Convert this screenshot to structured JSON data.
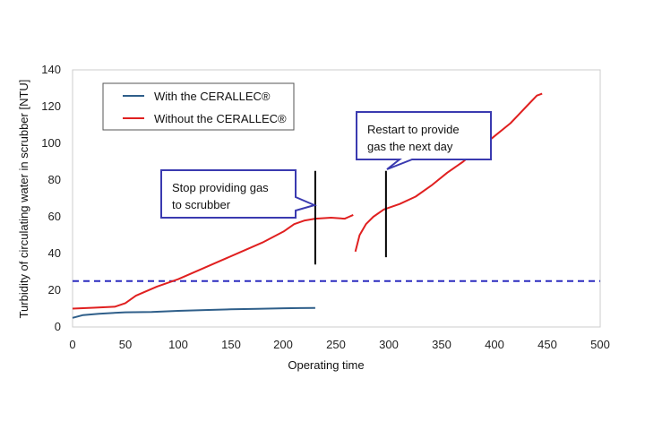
{
  "chart_data": {
    "type": "line",
    "xlabel": "Operating time",
    "ylabel": "Turbidity of circulating water in scrubber [NTU]",
    "xlim": [
      0,
      500
    ],
    "ylim": [
      0,
      140
    ],
    "xticks": [
      0,
      50,
      100,
      150,
      200,
      250,
      300,
      350,
      400,
      450,
      500
    ],
    "yticks": [
      0,
      20,
      40,
      60,
      80,
      100,
      120,
      140
    ],
    "grid": false,
    "legend_position": "top-left",
    "threshold": {
      "y": 25,
      "style": "dashed",
      "color": "#2b2bbf"
    },
    "series": [
      {
        "name": "With the CERALLEC®",
        "color": "#2f5f8a",
        "segments": [
          [
            [
              0,
              5
            ],
            [
              10,
              6.5
            ],
            [
              25,
              7.2
            ],
            [
              50,
              8
            ],
            [
              75,
              8.2
            ],
            [
              100,
              8.8
            ],
            [
              125,
              9.2
            ],
            [
              150,
              9.6
            ],
            [
              175,
              9.9
            ],
            [
              200,
              10.2
            ],
            [
              215,
              10.3
            ],
            [
              230,
              10.4
            ]
          ]
        ]
      },
      {
        "name": "Without the CERALLEC®",
        "color": "#e02020",
        "segments": [
          [
            [
              0,
              10
            ],
            [
              20,
              10.5
            ],
            [
              40,
              11
            ],
            [
              50,
              13
            ],
            [
              60,
              17
            ],
            [
              80,
              22
            ],
            [
              100,
              26
            ],
            [
              120,
              31
            ],
            [
              140,
              36
            ],
            [
              160,
              41
            ],
            [
              180,
              46
            ],
            [
              200,
              52
            ],
            [
              210,
              56
            ],
            [
              220,
              58
            ],
            [
              230,
              59
            ],
            [
              245,
              59.5
            ],
            [
              258,
              59
            ],
            [
              262,
              60
            ],
            [
              266,
              61
            ]
          ],
          [
            [
              268,
              41
            ],
            [
              272,
              50
            ],
            [
              278,
              56
            ],
            [
              285,
              60
            ],
            [
              295,
              64
            ],
            [
              310,
              67
            ],
            [
              325,
              71
            ],
            [
              340,
              77
            ],
            [
              355,
              84
            ],
            [
              370,
              90
            ],
            [
              385,
              97
            ],
            [
              400,
              104
            ],
            [
              415,
              111
            ],
            [
              430,
              120
            ],
            [
              440,
              126
            ],
            [
              445,
              127
            ]
          ]
        ]
      }
    ],
    "annotations": [
      {
        "text_lines": [
          "Stop providing gas",
          "to scrubber"
        ],
        "x": 230,
        "y_range": [
          34,
          85
        ]
      },
      {
        "text_lines": [
          "Restart to provide",
          "gas the next day"
        ],
        "x": 297,
        "y_range": [
          38,
          85
        ]
      }
    ]
  }
}
